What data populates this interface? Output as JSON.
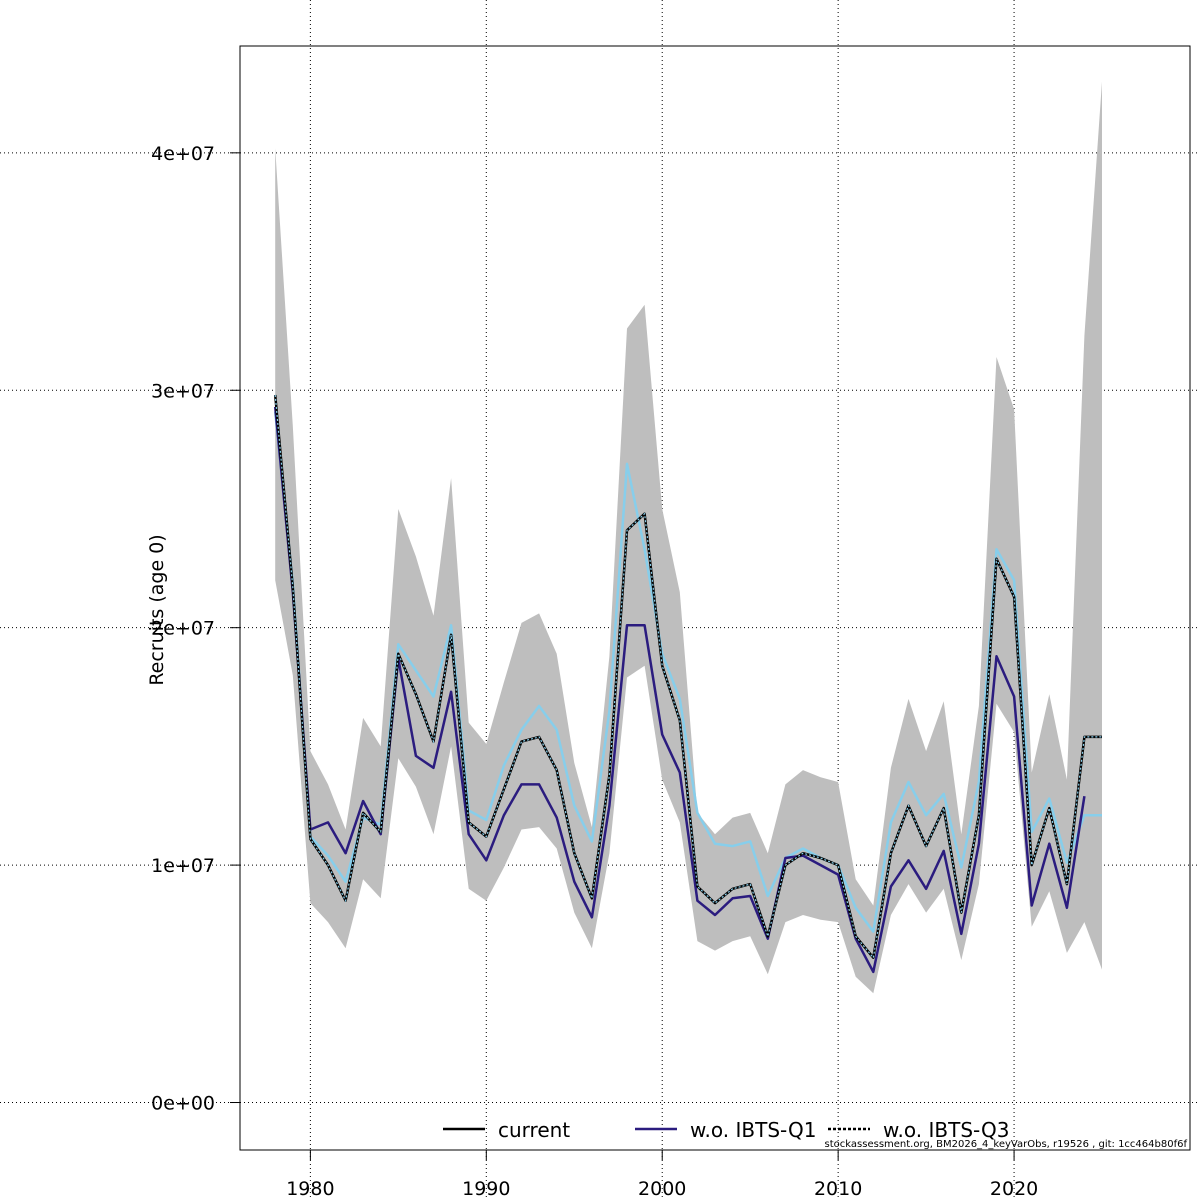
{
  "chart_data": {
    "type": "line",
    "title": "",
    "xlabel": "",
    "ylabel": "Recruits (age 0)",
    "xlim": [
      1976,
      2030
    ],
    "ylim": [
      -2000000,
      44500000
    ],
    "grid": true,
    "legend_placement": "bottom",
    "x_ticks": [
      {
        "value": 1980,
        "label": "1980"
      },
      {
        "value": 1990,
        "label": "1990"
      },
      {
        "value": 2000,
        "label": "2000"
      },
      {
        "value": 2010,
        "label": "2010"
      },
      {
        "value": 2020,
        "label": "2020"
      }
    ],
    "y_ticks": [
      {
        "value": 0,
        "label": "0e+00"
      },
      {
        "value": 10000000,
        "label": "1e+07"
      },
      {
        "value": 20000000,
        "label": "2e+07"
      },
      {
        "value": 30000000,
        "label": "3e+07"
      },
      {
        "value": 40000000,
        "label": "4e+07"
      }
    ],
    "x": [
      1978,
      1979,
      1980,
      1981,
      1982,
      1983,
      1984,
      1985,
      1986,
      1987,
      1988,
      1989,
      1990,
      1991,
      1992,
      1993,
      1994,
      1995,
      1996,
      1997,
      1998,
      1999,
      2000,
      2001,
      2002,
      2003,
      2004,
      2005,
      2006,
      2007,
      2008,
      2009,
      2010,
      2011,
      2012,
      2013,
      2014,
      2015,
      2016,
      2017,
      2018,
      2019,
      2020,
      2021,
      2022,
      2023,
      2024,
      2025
    ],
    "band": {
      "color": "#bebebe",
      "upper": [
        40200000,
        28500000,
        14800000,
        13400000,
        11500000,
        16200000,
        15000000,
        25000000,
        23000000,
        20500000,
        26300000,
        16000000,
        15100000,
        17700000,
        20200000,
        20600000,
        18900000,
        14300000,
        11600000,
        18800000,
        32600000,
        33600000,
        25000000,
        21500000,
        12200000,
        11300000,
        12000000,
        12200000,
        10500000,
        13400000,
        14000000,
        13700000,
        13500000,
        9400000,
        8300000,
        14100000,
        17000000,
        14800000,
        16900000,
        11300000,
        16700000,
        31400000,
        29200000,
        13900000,
        17200000,
        13600000,
        32300000,
        43000000
      ],
      "lower": [
        22000000,
        18000000,
        8400000,
        7600000,
        6500000,
        9400000,
        8600000,
        14500000,
        13300000,
        11300000,
        15000000,
        9000000,
        8500000,
        9900000,
        11500000,
        11600000,
        10700000,
        8000000,
        6500000,
        10500000,
        17900000,
        18400000,
        13600000,
        11800000,
        6800000,
        6400000,
        6800000,
        7000000,
        5400000,
        7600000,
        7900000,
        7700000,
        7600000,
        5300000,
        4600000,
        7900000,
        9200000,
        8000000,
        9000000,
        6000000,
        9200000,
        16800000,
        15600000,
        7400000,
        8900000,
        6300000,
        7600000,
        5600000
      ]
    },
    "series": [
      {
        "name": "current",
        "color": "#000000",
        "values": [
          29800000,
          21700000,
          11100000,
          10000000,
          8500000,
          12200000,
          11400000,
          18900000,
          17200000,
          15200000,
          19700000,
          11800000,
          11200000,
          13200000,
          15200000,
          15400000,
          14000000,
          10500000,
          8600000,
          13800000,
          24100000,
          24800000,
          18400000,
          16100000,
          9100000,
          8400000,
          9000000,
          9200000,
          7000000,
          10000000,
          10500000,
          10300000,
          10000000,
          7000000,
          6100000,
          10500000,
          12500000,
          10800000,
          12400000,
          8000000,
          12100000,
          22900000,
          21300000,
          10000000,
          12400000,
          9200000,
          15400000,
          15400000
        ]
      },
      {
        "name": "w.o. IBTS-Q1",
        "color": "#2b1c7f",
        "values": [
          29300000,
          21500000,
          11500000,
          11800000,
          10500000,
          12700000,
          11300000,
          18700000,
          14600000,
          14100000,
          17300000,
          11300000,
          10200000,
          12100000,
          13400000,
          13400000,
          12000000,
          9300000,
          7800000,
          12500000,
          20100000,
          20100000,
          15500000,
          13900000,
          8500000,
          7900000,
          8600000,
          8700000,
          6900000,
          10300000,
          10400000,
          10000000,
          9600000,
          6900000,
          5500000,
          9100000,
          10200000,
          9000000,
          10600000,
          7100000,
          10900000,
          18800000,
          17100000,
          8300000,
          10900000,
          8200000,
          12900000,
          null
        ]
      },
      {
        "name": "w.o. IBTS-Q3",
        "color": "#87ceeb",
        "values": [
          29100000,
          21900000,
          11200000,
          10400000,
          9300000,
          12000000,
          11700000,
          19300000,
          18200000,
          17100000,
          20100000,
          12300000,
          11900000,
          14200000,
          15700000,
          16700000,
          15700000,
          12500000,
          11000000,
          16500000,
          26900000,
          23300000,
          18900000,
          17000000,
          12200000,
          10900000,
          10800000,
          11000000,
          8700000,
          10300000,
          10700000,
          10300000,
          10000000,
          8200000,
          7200000,
          11800000,
          13500000,
          12100000,
          13000000,
          9900000,
          13500000,
          23300000,
          22000000,
          11400000,
          12800000,
          10100000,
          12100000,
          12100000
        ]
      }
    ],
    "legend": [
      {
        "label": "current",
        "color": "#000000",
        "style": "solid"
      },
      {
        "label": "w.o. IBTS-Q1",
        "color": "#2b1c7f",
        "style": "solid"
      },
      {
        "label": "w.o. IBTS-Q3",
        "color": "#000000",
        "style": "dotted"
      }
    ],
    "footnote": "stockassessment.org, BM2026_4_keyVarObs, r19526 , git: 1cc464b80f6f"
  }
}
